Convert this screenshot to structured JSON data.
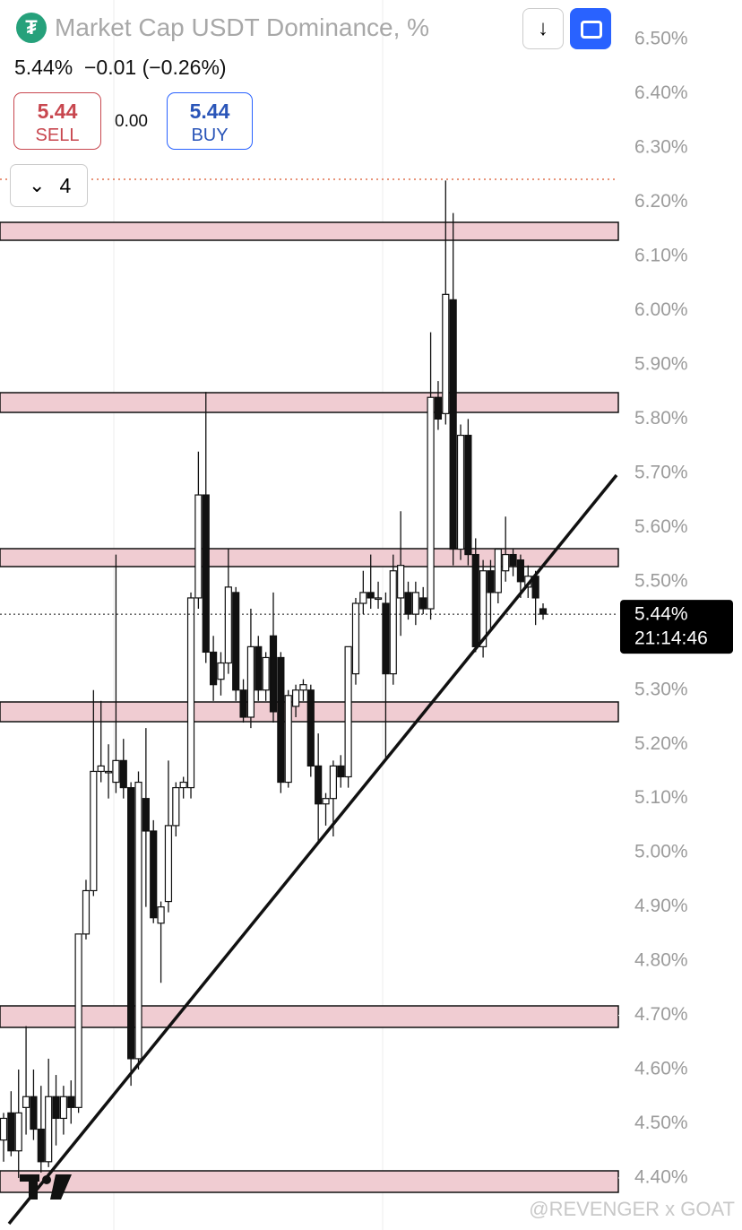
{
  "chart_data": {
    "type": "candlestick",
    "title": "Market Cap USDT Dominance, %",
    "quote": "5.44%  −0.01 (−0.26%)",
    "sell_price": "5.44",
    "sell_label": "SELL",
    "spread": "0.00",
    "buy_price": "5.44",
    "buy_label": "BUY",
    "indicators_count": "4",
    "last_price": {
      "value": 5.44,
      "label": "5.44%"
    },
    "countdown": "21:14:46",
    "watermark": "@REVENGER x GOAT",
    "ylim": [
      4.304,
      6.573
    ],
    "yticks": [
      {
        "value": 6.5,
        "label": "6.50%"
      },
      {
        "value": 6.4,
        "label": "6.40%"
      },
      {
        "value": 6.3,
        "label": "6.30%"
      },
      {
        "value": 6.2,
        "label": "6.20%"
      },
      {
        "value": 6.1,
        "label": "6.10%"
      },
      {
        "value": 6.0,
        "label": "6.00%"
      },
      {
        "value": 5.9,
        "label": "5.90%"
      },
      {
        "value": 5.8,
        "label": "5.80%"
      },
      {
        "value": 5.7,
        "label": "5.70%"
      },
      {
        "value": 5.6,
        "label": "5.60%"
      },
      {
        "value": 5.5,
        "label": "5.50%"
      },
      {
        "value": 5.3,
        "label": "5.30%"
      },
      {
        "value": 5.2,
        "label": "5.20%"
      },
      {
        "value": 5.1,
        "label": "5.10%"
      },
      {
        "value": 5.0,
        "label": "5.00%"
      },
      {
        "value": 4.9,
        "label": "4.90%"
      },
      {
        "value": 4.8,
        "label": "4.80%"
      },
      {
        "value": 4.7,
        "label": "4.70%"
      },
      {
        "value": 4.6,
        "label": "4.60%"
      },
      {
        "value": 4.5,
        "label": "4.50%"
      },
      {
        "value": 4.4,
        "label": "4.40%"
      }
    ],
    "open": [
      4.47,
      4.52,
      4.45,
      4.53,
      4.55,
      4.49,
      4.43,
      4.55,
      4.51,
      4.55,
      4.53,
      4.85,
      4.93,
      5.15,
      5.15,
      5.13,
      5.17,
      5.12,
      4.62,
      5.1,
      5.04,
      4.87,
      4.91,
      5.05,
      5.12,
      5.12,
      5.47,
      5.66,
      5.37,
      5.32,
      5.35,
      5.48,
      5.3,
      5.25,
      5.38,
      5.3,
      5.4,
      5.36,
      5.13,
      5.27,
      5.3,
      5.3,
      5.16,
      5.09,
      5.1,
      5.16,
      5.14,
      5.33,
      5.46,
      5.48,
      5.47,
      5.46,
      5.33,
      5.47,
      5.48,
      5.44,
      5.47,
      5.45,
      5.84,
      5.81,
      6.02,
      5.56,
      5.77,
      5.55,
      5.38,
      5.52,
      5.48,
      5.52,
      5.55,
      5.54,
      5.49,
      5.51,
      5.45
    ],
    "high": [
      4.52,
      4.56,
      4.6,
      4.68,
      4.6,
      4.57,
      4.62,
      4.59,
      4.57,
      4.58,
      4.85,
      4.95,
      5.3,
      5.28,
      5.2,
      5.55,
      5.21,
      5.13,
      5.15,
      5.23,
      5.06,
      4.91,
      5.17,
      5.13,
      5.14,
      5.48,
      5.74,
      5.85,
      5.4,
      5.37,
      5.56,
      5.49,
      5.32,
      5.45,
      5.4,
      5.37,
      5.48,
      5.37,
      5.3,
      5.31,
      5.32,
      5.31,
      5.22,
      5.11,
      5.17,
      5.18,
      5.38,
      5.47,
      5.52,
      5.55,
      5.5,
      5.48,
      5.55,
      5.63,
      5.5,
      5.5,
      5.49,
      5.96,
      5.87,
      6.24,
      6.18,
      5.79,
      5.8,
      5.58,
      5.54,
      5.54,
      5.54,
      5.62,
      5.56,
      5.55,
      5.53,
      5.52,
      5.46
    ],
    "low": [
      4.43,
      4.44,
      4.4,
      4.48,
      4.47,
      4.41,
      4.42,
      4.46,
      4.48,
      4.5,
      4.52,
      4.84,
      4.92,
      5.13,
      5.1,
      5.11,
      5.1,
      4.57,
      4.6,
      4.9,
      4.87,
      4.76,
      4.89,
      5.03,
      5.1,
      5.1,
      5.45,
      5.35,
      5.28,
      5.29,
      5.33,
      5.28,
      5.24,
      5.23,
      5.28,
      5.28,
      5.24,
      5.11,
      5.12,
      5.25,
      5.28,
      5.14,
      5.02,
      5.05,
      5.03,
      5.12,
      5.12,
      5.31,
      5.44,
      5.45,
      5.45,
      5.17,
      5.31,
      5.4,
      5.43,
      5.42,
      5.44,
      5.43,
      5.78,
      5.79,
      5.53,
      5.54,
      5.53,
      5.37,
      5.36,
      5.41,
      5.46,
      5.5,
      5.51,
      5.47,
      5.47,
      5.42,
      5.43
    ],
    "close": [
      4.51,
      4.45,
      4.52,
      4.55,
      4.49,
      4.43,
      4.55,
      4.51,
      4.55,
      4.53,
      4.85,
      4.93,
      5.15,
      5.16,
      5.15,
      5.17,
      5.12,
      4.62,
      5.13,
      5.04,
      4.88,
      4.9,
      5.05,
      5.12,
      5.13,
      5.47,
      5.66,
      5.37,
      5.31,
      5.35,
      5.49,
      5.3,
      5.25,
      5.38,
      5.3,
      5.36,
      5.26,
      5.13,
      5.29,
      5.3,
      5.31,
      5.16,
      5.09,
      5.1,
      5.16,
      5.14,
      5.38,
      5.46,
      5.48,
      5.47,
      5.47,
      5.33,
      5.52,
      5.53,
      5.44,
      5.48,
      5.45,
      5.84,
      5.8,
      6.03,
      5.56,
      5.77,
      5.55,
      5.38,
      5.52,
      5.48,
      5.56,
      5.55,
      5.53,
      5.5,
      5.51,
      5.47,
      5.44
    ]
  }
}
